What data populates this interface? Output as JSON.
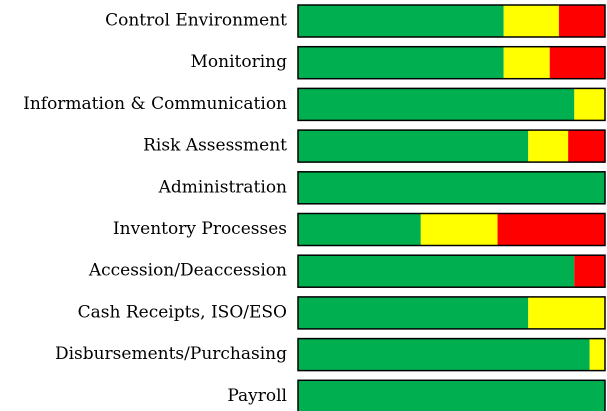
{
  "chart_data": {
    "type": "stacked-bar-horizontal",
    "categories": [
      "Control Environment",
      "Monitoring",
      "Information & Communication",
      "Risk Assessment",
      "Administration",
      "Inventory Processes",
      "Accession/Deaccession",
      "Cash Receipts, ISO/ESO",
      "Disbursements/Purchasing",
      "Payroll"
    ],
    "series": [
      {
        "color": "#00b050",
        "values": [
          67,
          67,
          90,
          75,
          100,
          40,
          90,
          75,
          95,
          100
        ]
      },
      {
        "color": "#ffff00",
        "values": [
          18,
          15,
          10,
          13,
          0,
          25,
          0,
          25,
          5,
          0
        ]
      },
      {
        "color": "#ff0000",
        "values": [
          15,
          18,
          0,
          12,
          0,
          35,
          10,
          0,
          0,
          0
        ]
      }
    ],
    "xlim": [
      0,
      100
    ]
  }
}
